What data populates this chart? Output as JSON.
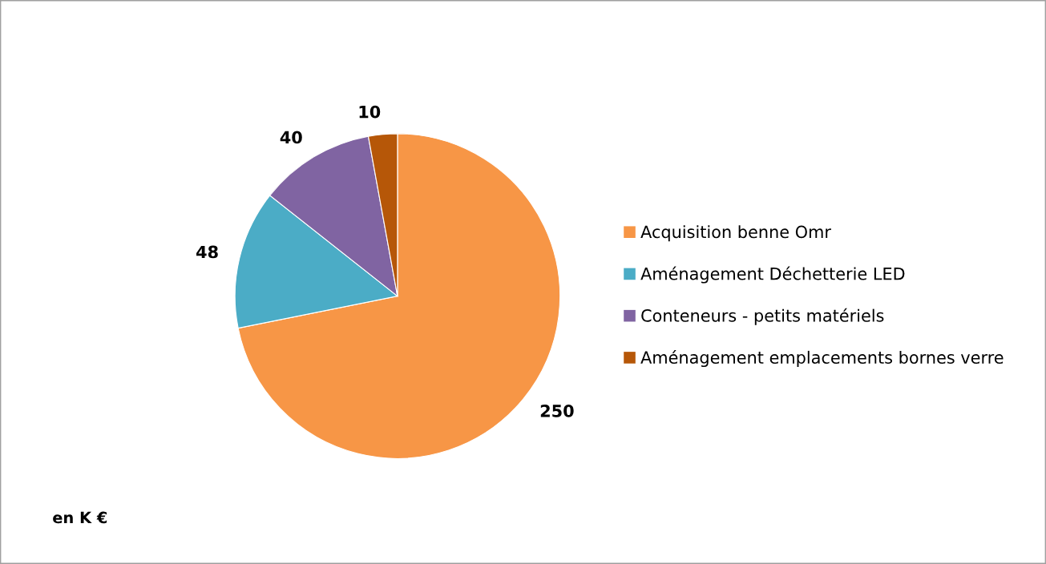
{
  "chart_data": {
    "type": "pie",
    "categories": [
      "Acquisition benne Omr",
      "Aménagement Déchetterie LED",
      "Conteneurs - petits matériels",
      "Aménagement emplacements bornes verre"
    ],
    "values": [
      250,
      48,
      40,
      10
    ],
    "colors": [
      "#f79646",
      "#4bacc6",
      "#8064a2",
      "#b65708"
    ],
    "data_labels": true,
    "legend": "right",
    "annotations": [
      "en K €"
    ]
  }
}
